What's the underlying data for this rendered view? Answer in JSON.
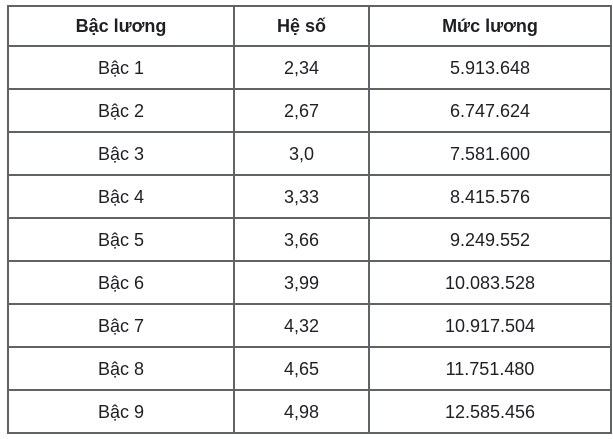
{
  "table": {
    "columns": [
      {
        "label": "Bậc lương"
      },
      {
        "label": "Hệ số"
      },
      {
        "label": "Mức lương"
      }
    ],
    "rows": [
      {
        "level": "Bậc 1",
        "coefficient": "2,34",
        "salary": "5.913.648"
      },
      {
        "level": "Bậc 2",
        "coefficient": "2,67",
        "salary": "6.747.624"
      },
      {
        "level": "Bậc 3",
        "coefficient": "3,0",
        "salary": "7.581.600"
      },
      {
        "level": "Bậc 4",
        "coefficient": "3,33",
        "salary": "8.415.576"
      },
      {
        "level": "Bậc 5",
        "coefficient": "3,66",
        "salary": "9.249.552"
      },
      {
        "level": "Bậc 6",
        "coefficient": "3,99",
        "salary": "10.083.528"
      },
      {
        "level": "Bậc 7",
        "coefficient": "4,32",
        "salary": "10.917.504"
      },
      {
        "level": "Bậc 8",
        "coefficient": "4,65",
        "salary": "11.751.480"
      },
      {
        "level": "Bậc 9",
        "coefficient": "4,98",
        "salary": "12.585.456"
      }
    ]
  },
  "colors": {
    "border": "#5f6367",
    "text": "#1d1f21",
    "background": "#ffffff"
  }
}
